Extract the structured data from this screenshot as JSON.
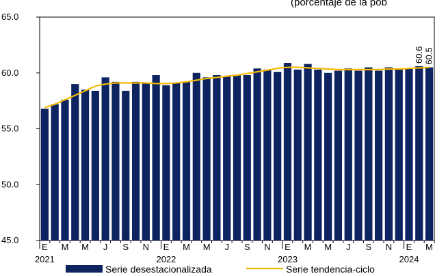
{
  "header_text": "(porcentaje de la pob",
  "chart_data": {
    "type": "bar",
    "title": "",
    "xlabel": "",
    "ylabel": "",
    "ylim": [
      45.0,
      65.0
    ],
    "y_ticks": [
      "45.0",
      "50.0",
      "55.0",
      "60.0",
      "65.0"
    ],
    "grid": false,
    "legend_position": "bottom",
    "colors": {
      "bars": "#0d2461",
      "trend": "#f5b800"
    },
    "categories": [
      "2021-01",
      "2021-02",
      "2021-03",
      "2021-04",
      "2021-05",
      "2021-06",
      "2021-07",
      "2021-08",
      "2021-09",
      "2021-10",
      "2021-11",
      "2021-12",
      "2022-01",
      "2022-02",
      "2022-03",
      "2022-04",
      "2022-05",
      "2022-06",
      "2022-07",
      "2022-08",
      "2022-09",
      "2022-10",
      "2022-11",
      "2022-12",
      "2023-01",
      "2023-02",
      "2023-03",
      "2023-04",
      "2023-05",
      "2023-06",
      "2023-07",
      "2023-08",
      "2023-09",
      "2023-10",
      "2023-11",
      "2023-12",
      "2024-01",
      "2024-02",
      "2024-03"
    ],
    "x_tick_labels": [
      "E",
      "M",
      "M",
      "J",
      "S",
      "N",
      "E",
      "M",
      "M",
      "J",
      "S",
      "N",
      "E",
      "M",
      "M",
      "J",
      "S",
      "N",
      "E",
      "M"
    ],
    "year_labels": [
      {
        "index": 0,
        "text": "2021"
      },
      {
        "index": 12,
        "text": "2022"
      },
      {
        "index": 24,
        "text": "2023"
      },
      {
        "index": 36,
        "text": "2024"
      }
    ],
    "series": [
      {
        "name": "Serie desestacionalizada",
        "kind": "bar",
        "values": [
          56.8,
          57.2,
          57.6,
          59.0,
          58.5,
          58.4,
          59.6,
          59.2,
          58.4,
          59.2,
          59.1,
          59.8,
          58.9,
          59.1,
          59.2,
          60.0,
          59.6,
          59.8,
          59.7,
          59.8,
          59.8,
          60.4,
          60.3,
          60.1,
          60.9,
          60.3,
          60.8,
          60.3,
          60.0,
          60.2,
          60.4,
          60.2,
          60.5,
          60.2,
          60.5,
          60.3,
          60.4,
          60.6,
          60.5
        ]
      },
      {
        "name": "Serie tendencia-ciclo",
        "kind": "line",
        "values": [
          56.9,
          57.2,
          57.6,
          58.0,
          58.4,
          58.8,
          59.0,
          59.1,
          59.1,
          59.1,
          59.1,
          59.05,
          59.05,
          59.1,
          59.2,
          59.35,
          59.5,
          59.6,
          59.7,
          59.8,
          59.95,
          60.1,
          60.25,
          60.4,
          60.5,
          60.5,
          60.45,
          60.4,
          60.35,
          60.3,
          60.3,
          60.3,
          60.3,
          60.3,
          60.35,
          60.35,
          60.4,
          60.45,
          60.5
        ]
      }
    ],
    "data_labels": [
      {
        "index": 37,
        "text": "60.6"
      },
      {
        "index": 38,
        "text": "60.5"
      }
    ]
  }
}
